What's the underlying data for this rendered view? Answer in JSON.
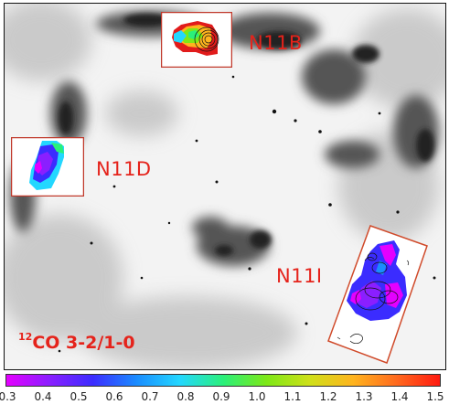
{
  "labels": {
    "n11b": "N11B",
    "n11d": "N11D",
    "n11i": "N11I",
    "ratio_iso": "12",
    "ratio_rest": "CO 3-2/1-0"
  },
  "colorbar": {
    "ticks": [
      "0.3",
      "0.4",
      "0.5",
      "0.6",
      "0.7",
      "0.8",
      "0.9",
      "1.0",
      "1.1",
      "1.2",
      "1.3",
      "1.4",
      "1.5"
    ],
    "colors": [
      "#e400ff",
      "#8a1fff",
      "#3b2cff",
      "#1a8cff",
      "#23d7ff",
      "#2af07a",
      "#7de817",
      "#cfe019",
      "#ffb41e",
      "#ff6a1e",
      "#ff1a10"
    ]
  },
  "colors": {
    "label_red": "#e5231b",
    "inset_border": "#c0392b"
  }
}
